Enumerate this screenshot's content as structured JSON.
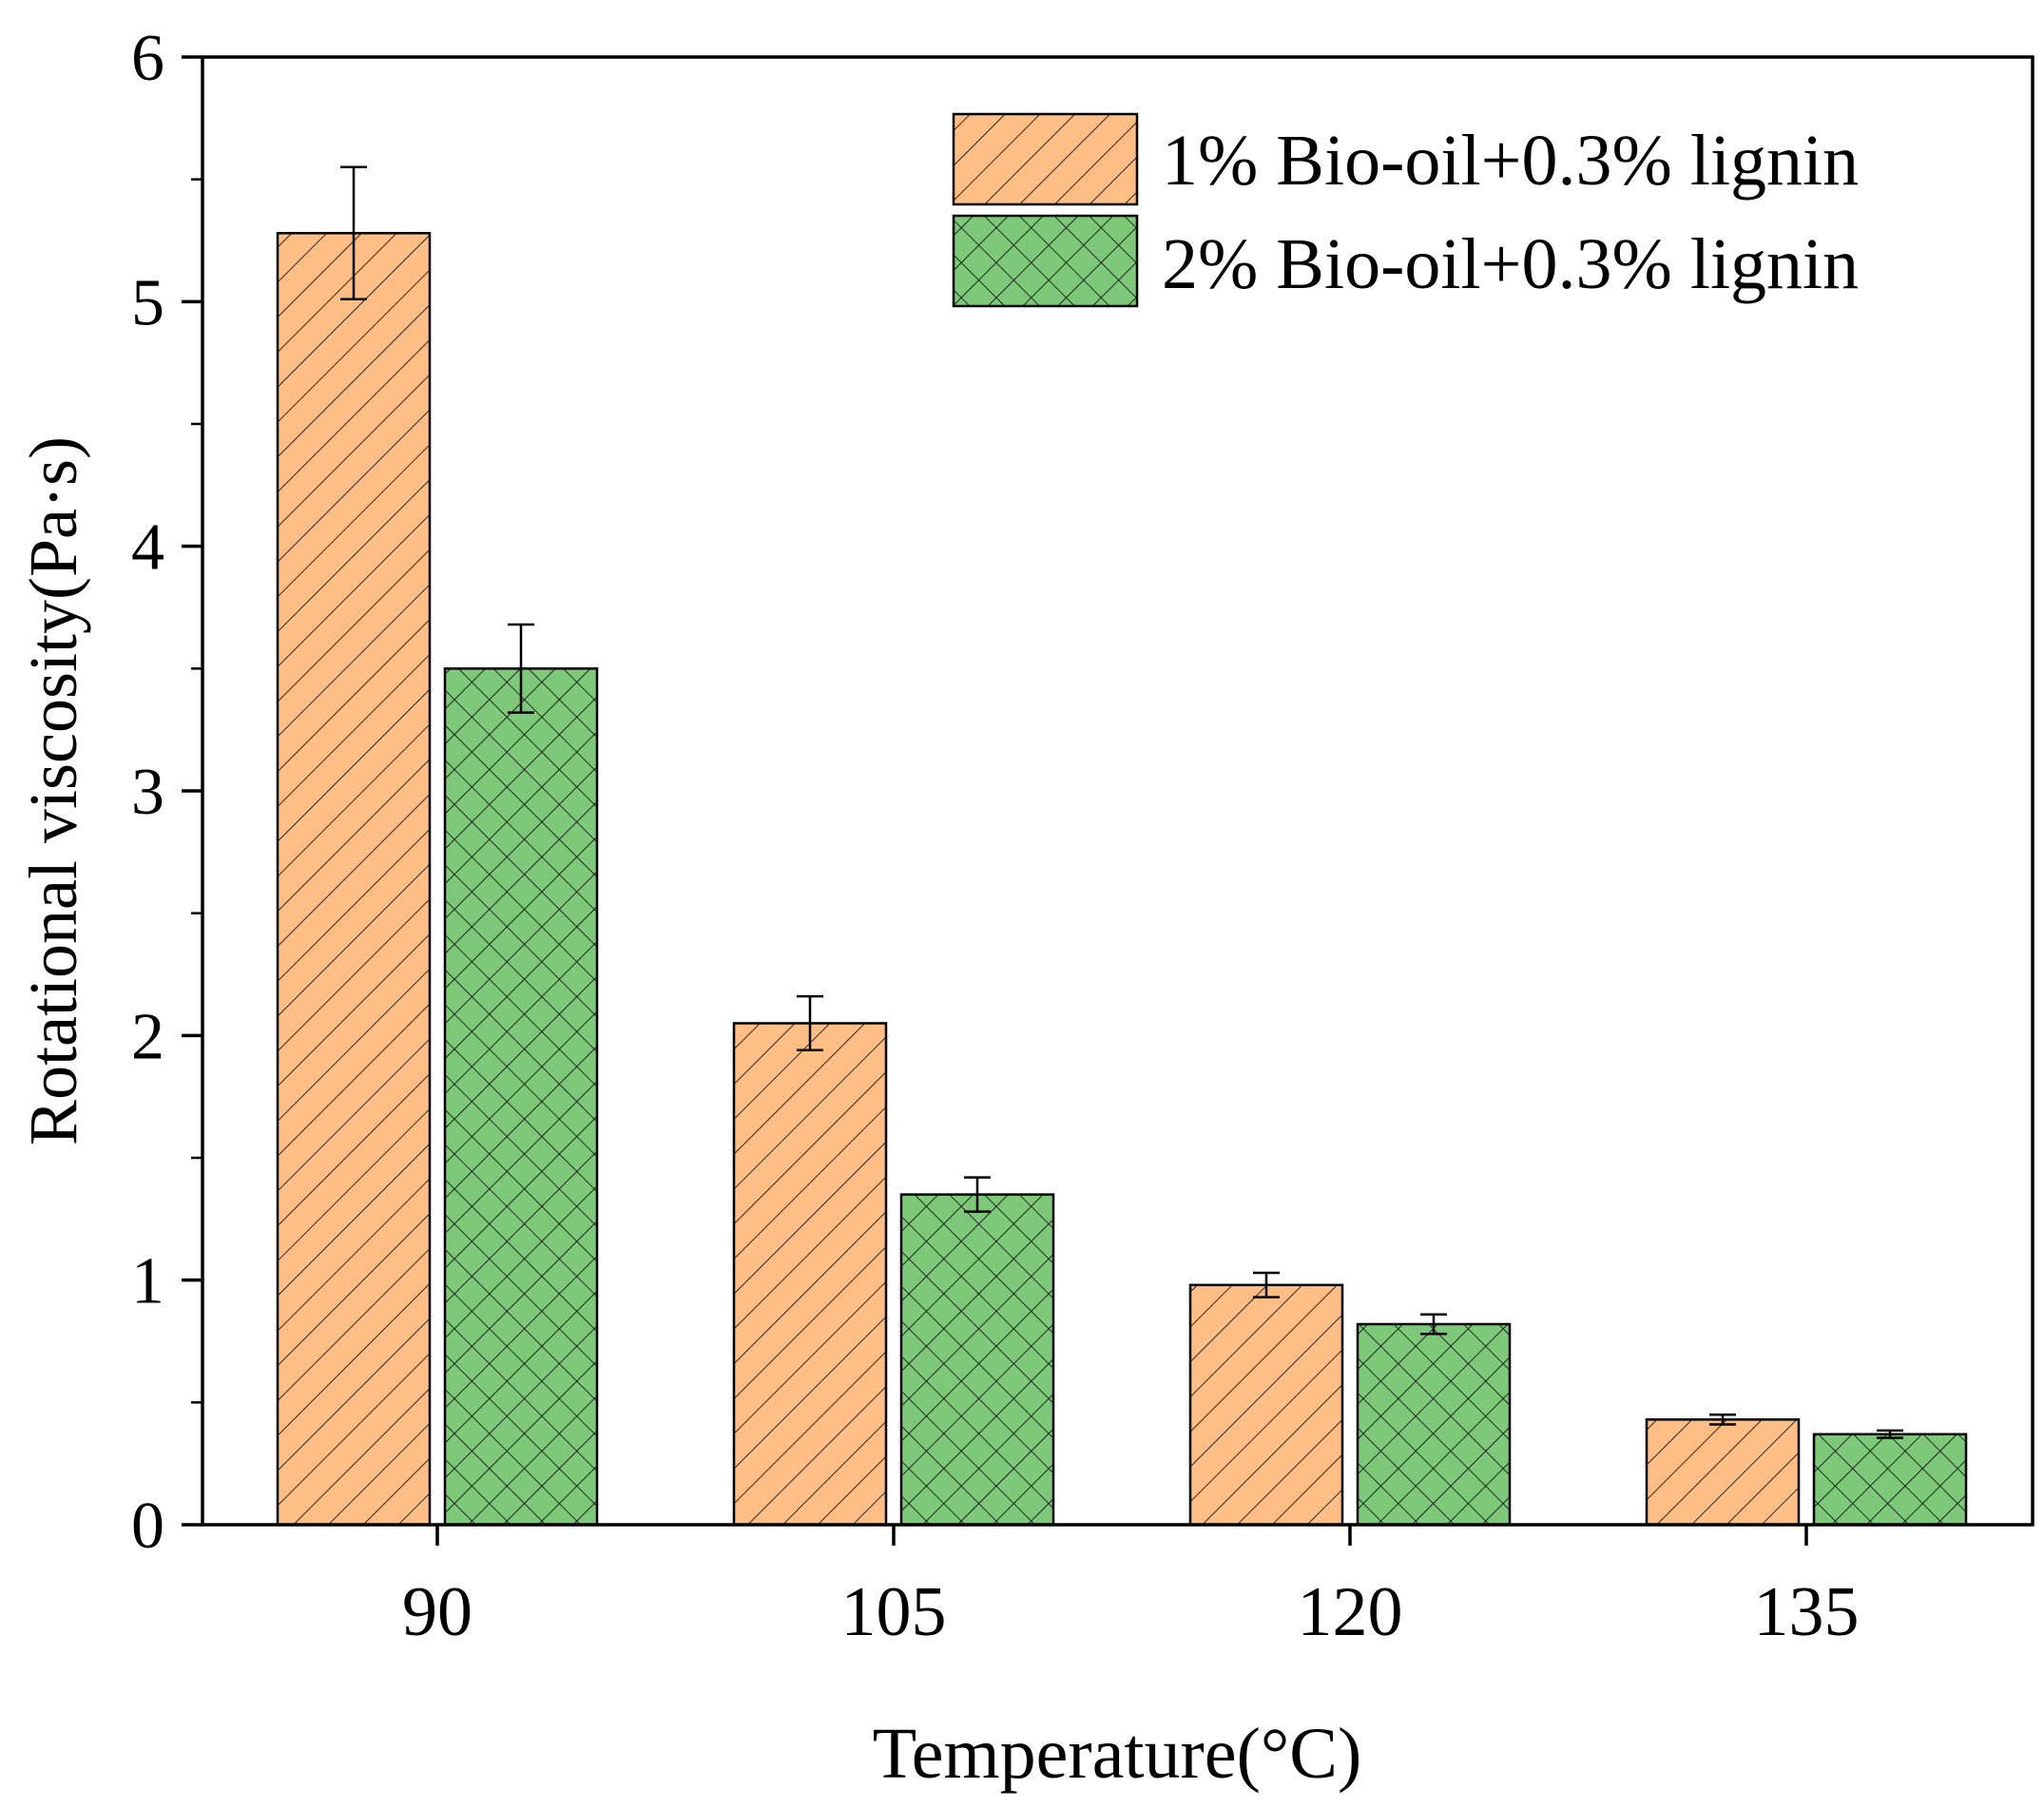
{
  "colors": {
    "series_1_fill": "#ffbe86",
    "series_2_fill": "#7ec87a",
    "outline": "#000000",
    "background": "#ffffff"
  },
  "chart_data": {
    "type": "bar",
    "title": "",
    "xlabel": "Temperature(°C)",
    "ylabel": "Rotational viscosity(Pa·s)",
    "categories": [
      "90",
      "105",
      "120",
      "135"
    ],
    "ylim": [
      0,
      6
    ],
    "yticks": [
      "0",
      "1",
      "2",
      "3",
      "4",
      "5",
      "6"
    ],
    "grid": false,
    "legend_position": "top-right",
    "series": [
      {
        "name": "1% Bio-oil+0.3% lignin",
        "pattern": "diagonal-hatch",
        "values": [
          5.28,
          2.05,
          0.98,
          0.43
        ],
        "errors": [
          0.27,
          0.11,
          0.05,
          0.02
        ]
      },
      {
        "name": "2% Bio-oil+0.3% lignin",
        "pattern": "cross-hatch",
        "values": [
          3.5,
          1.35,
          0.82,
          0.37
        ],
        "errors": [
          0.18,
          0.07,
          0.04,
          0.015
        ]
      }
    ]
  }
}
